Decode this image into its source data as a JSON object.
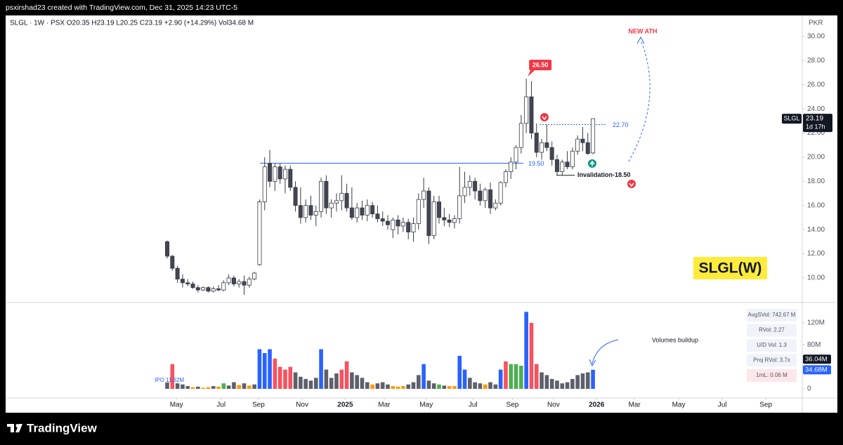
{
  "header": {
    "text": "psxirshad23 created with TradingView.com, Dec 31, 2025 14:23 UTC-5"
  },
  "footer": {
    "brand": "TradingView"
  },
  "chart_data": [
    {
      "type": "candlestick",
      "legend": "SLGL · 1W · PSX  O20.35  H23.19  L20.25  C23.19  +2.90 (+14.29%)  Vol34.68 M",
      "axis_unit": "PKR",
      "up_color": "#ffffff",
      "down_color": "#434651",
      "wick_color": "#363a45",
      "open": [
        13.0,
        11.8,
        10.8,
        9.9,
        9.6,
        9.5,
        9.2,
        9.0,
        9.2,
        8.9,
        9.1,
        9.0,
        9.6,
        10.0,
        9.5,
        9.7,
        9.4,
        9.9,
        11.1,
        16.3,
        19.5,
        18.0,
        19.2,
        18.2,
        19.0,
        17.5,
        16.0,
        15.0,
        16.0,
        15.2,
        15.5,
        18.0,
        15.8,
        16.2,
        16.4,
        17.0,
        15.8,
        15.0,
        15.8,
        15.2,
        16.0,
        15.3,
        14.9,
        14.7,
        14.0,
        14.8,
        14.3,
        14.6,
        13.8,
        14.5,
        16.5,
        17.2,
        13.5,
        16.3,
        15.0,
        14.8,
        14.6,
        14.9,
        16.8,
        17.5,
        18.0,
        17.2,
        16.4,
        17.3,
        15.8,
        16.2,
        17.9,
        18.8,
        19.6,
        20.8,
        22.8,
        25.0,
        22.0,
        20.4,
        21.2,
        20.8,
        19.8,
        18.8,
        19.6,
        19.2,
        20.5,
        21.5,
        21.2,
        20.35
      ],
      "high": [
        13.1,
        11.9,
        11.0,
        10.3,
        9.9,
        9.7,
        9.4,
        9.3,
        9.3,
        9.3,
        9.4,
        9.8,
        10.3,
        10.2,
        9.9,
        10.2,
        10.1,
        10.5,
        16.5,
        20.0,
        20.6,
        19.5,
        19.5,
        19.3,
        19.3,
        18.0,
        17.5,
        16.5,
        16.8,
        16.0,
        18.3,
        18.5,
        16.5,
        17.0,
        18.5,
        17.8,
        17.5,
        16.2,
        16.4,
        16.5,
        16.3,
        16.0,
        15.5,
        15.2,
        15.0,
        15.2,
        15.0,
        14.9,
        15.0,
        17.0,
        18.3,
        17.5,
        16.8,
        16.8,
        15.8,
        15.3,
        15.2,
        19.2,
        18.8,
        18.5,
        18.3,
        17.8,
        17.5,
        17.9,
        16.5,
        18.0,
        19.0,
        20.0,
        21.0,
        23.5,
        26.5,
        26.3,
        22.8,
        21.5,
        22.7,
        21.3,
        20.2,
        19.8,
        20.5,
        20.8,
        21.8,
        22.5,
        22.0,
        23.19
      ],
      "low": [
        11.6,
        10.6,
        9.6,
        9.2,
        9.3,
        9.1,
        8.8,
        8.9,
        8.8,
        8.8,
        8.9,
        8.9,
        9.4,
        9.3,
        9.2,
        8.6,
        9.2,
        9.8,
        11.0,
        15.6,
        17.5,
        17.2,
        17.8,
        17.0,
        17.2,
        15.5,
        14.5,
        14.6,
        14.8,
        14.3,
        15.0,
        15.3,
        15.0,
        15.5,
        15.6,
        15.5,
        14.8,
        14.6,
        14.8,
        14.7,
        15.0,
        14.6,
        14.3,
        14.0,
        13.3,
        13.6,
        13.8,
        13.2,
        13.0,
        14.0,
        15.8,
        12.8,
        13.2,
        14.5,
        14.3,
        14.2,
        14.1,
        14.5,
        16.2,
        16.8,
        16.5,
        16.0,
        15.8,
        15.3,
        15.6,
        16.0,
        17.5,
        18.2,
        19.0,
        20.3,
        22.0,
        21.5,
        20.0,
        19.8,
        20.5,
        19.3,
        18.5,
        18.5,
        19.0,
        19.0,
        20.2,
        20.5,
        20.2,
        20.25
      ],
      "close": [
        11.8,
        10.8,
        9.9,
        9.6,
        9.5,
        9.2,
        9.0,
        9.2,
        8.9,
        9.1,
        9.0,
        9.6,
        10.0,
        9.5,
        9.7,
        9.4,
        9.9,
        10.4,
        16.3,
        19.2,
        18.0,
        19.2,
        18.2,
        19.0,
        17.5,
        16.0,
        15.0,
        16.0,
        15.2,
        15.5,
        18.0,
        15.8,
        16.2,
        16.4,
        17.0,
        15.8,
        15.0,
        15.8,
        15.2,
        16.0,
        15.3,
        14.9,
        14.7,
        14.4,
        14.8,
        14.3,
        14.6,
        13.8,
        14.5,
        16.5,
        17.2,
        13.5,
        16.3,
        15.0,
        14.8,
        14.6,
        14.9,
        16.8,
        17.5,
        18.0,
        17.2,
        16.4,
        17.3,
        15.8,
        16.2,
        17.9,
        18.8,
        19.6,
        20.8,
        22.8,
        25.0,
        22.0,
        20.4,
        21.2,
        20.8,
        19.8,
        18.8,
        19.6,
        19.2,
        20.5,
        21.5,
        21.2,
        20.3,
        23.19
      ],
      "xlim": [
        -31.5,
        123.8
      ],
      "xticks": [
        {
          "value": 1.8,
          "label": "May"
        },
        {
          "value": 10.5,
          "label": "Jul"
        },
        {
          "value": 17.8,
          "label": "Sep"
        },
        {
          "value": 26.3,
          "label": "Nov"
        },
        34.7,
        {
          "value": 42.3,
          "label": "Mar"
        },
        {
          "value": 50.5,
          "label": "May"
        },
        {
          "value": 59.6,
          "label": "Jul"
        },
        {
          "value": 67.3,
          "label": "Sep"
        },
        {
          "value": 75.3,
          "label": "Nov"
        },
        83.7,
        {
          "value": 91.1,
          "label": "Mar"
        },
        {
          "value": 99.7,
          "label": "May"
        },
        {
          "value": 108.2,
          "label": "Jul"
        },
        {
          "value": 116.7,
          "label": "Sep"
        }
      ],
      "xtick_years": [
        {
          "value": 34.7,
          "label": "2025"
        },
        {
          "value": 83.7,
          "label": "2026"
        }
      ],
      "ylim": [
        8.02,
        31.74
      ],
      "yticks": [
        {
          "value": 10,
          "label": "10.00"
        },
        {
          "value": 12,
          "label": "12.00"
        },
        {
          "value": 14,
          "label": "14.00"
        },
        {
          "value": 16,
          "label": "16.00"
        },
        {
          "value": 18,
          "label": "18.00"
        },
        {
          "value": 20,
          "label": "20.00"
        },
        {
          "value": 22,
          "label": "22.00"
        },
        {
          "value": 24,
          "label": "24.00"
        },
        {
          "value": 26,
          "label": "26.00"
        },
        {
          "value": 28,
          "label": "28.00"
        },
        {
          "value": 30,
          "label": "30.00"
        }
      ],
      "ath_tag": {
        "value": 26.5,
        "label": "26.50"
      },
      "ath_note": "NEW ATH",
      "levels": [
        {
          "value": 19.5,
          "label": "19.50"
        },
        {
          "value": 22.7,
          "label": "22.70"
        },
        {
          "value": 18.5,
          "label": "Invalidation-18.50"
        }
      ],
      "symbol_box": "SLGL(W)",
      "last_price": {
        "value": 23.19,
        "label": "23.19",
        "countdown": "1d 17h",
        "symbol": "SLGL"
      }
    },
    {
      "type": "bar",
      "values": [
        11.62,
        45,
        10,
        8,
        5,
        3,
        4,
        2,
        3,
        5,
        4,
        10,
        6,
        12,
        7,
        10,
        6,
        8,
        72,
        65,
        72,
        55,
        40,
        35,
        40,
        30,
        22,
        18,
        15,
        20,
        72,
        35,
        20,
        28,
        35,
        50,
        30,
        25,
        20,
        12,
        8,
        10,
        12,
        8,
        5,
        4,
        5,
        8,
        12,
        25,
        45,
        15,
        10,
        8,
        6,
        5,
        5,
        60,
        35,
        20,
        12,
        10,
        8,
        12,
        8,
        35,
        50,
        45,
        45,
        42,
        140,
        120,
        45,
        30,
        25,
        18,
        15,
        10,
        12,
        18,
        25,
        28,
        30,
        34.68
      ],
      "colors": [
        "#5d606b",
        "#f7525f",
        "#5d606b",
        "#5d606b",
        "#5d606b",
        "#ff9800",
        "#5d606b",
        "#ff9800",
        "#ff9800",
        "#5d606b",
        "#ff9800",
        "#4caf50",
        "#5d606b",
        "#5d606b",
        "#ff9800",
        "#5d606b",
        "#ff9800",
        "#5d606b",
        "#2962ff",
        "#2962ff",
        "#2962ff",
        "#f7525f",
        "#f7525f",
        "#f7525f",
        "#f7525f",
        "#5d606b",
        "#5d606b",
        "#5d606b",
        "#5d606b",
        "#5d606b",
        "#2962ff",
        "#5d606b",
        "#5d606b",
        "#5d606b",
        "#f7525f",
        "#f7525f",
        "#5d606b",
        "#5d606b",
        "#5d606b",
        "#5d606b",
        "#ff9800",
        "#5d606b",
        "#5d606b",
        "#5d606b",
        "#ff9800",
        "#ff9800",
        "#ff9800",
        "#5d606b",
        "#5d606b",
        "#5d606b",
        "#2962ff",
        "#5d606b",
        "#5d606b",
        "#4caf50",
        "#5d606b",
        "#ff9800",
        "#ff9800",
        "#2962ff",
        "#2962ff",
        "#5d606b",
        "#5d606b",
        "#5d606b",
        "#ff9800",
        "#5d606b",
        "#5d606b",
        "#2962ff",
        "#f7525f",
        "#4caf50",
        "#4caf50",
        "#4caf50",
        "#2962ff",
        "#f7525f",
        "#f7525f",
        "#5d606b",
        "#5d606b",
        "#5d606b",
        "#5d606b",
        "#5d606b",
        "#5d606b",
        "#5d606b",
        "#5d606b",
        "#5d606b",
        "#5d606b",
        "#2962ff"
      ],
      "ylim": [
        -16.6,
        155.7
      ],
      "yticks": [
        0,
        {
          "value": 80,
          "label": "80M"
        },
        {
          "value": 120,
          "label": "120M"
        }
      ],
      "ipo_label": "IPO 11.62M",
      "note": "Volumes buildup",
      "tags": [
        {
          "value": 36.04,
          "label": "36.04M",
          "color": "#131722"
        },
        {
          "value": 34.68,
          "label": "34.68M",
          "color": "#2962ff"
        }
      ],
      "stats": [
        "AvgSVol: 742.67 M",
        "RVol: 2.27",
        "U/D Vol: 1.3",
        "Proj RVol: 3.7x",
        "1mL: 0.06 M"
      ]
    }
  ]
}
